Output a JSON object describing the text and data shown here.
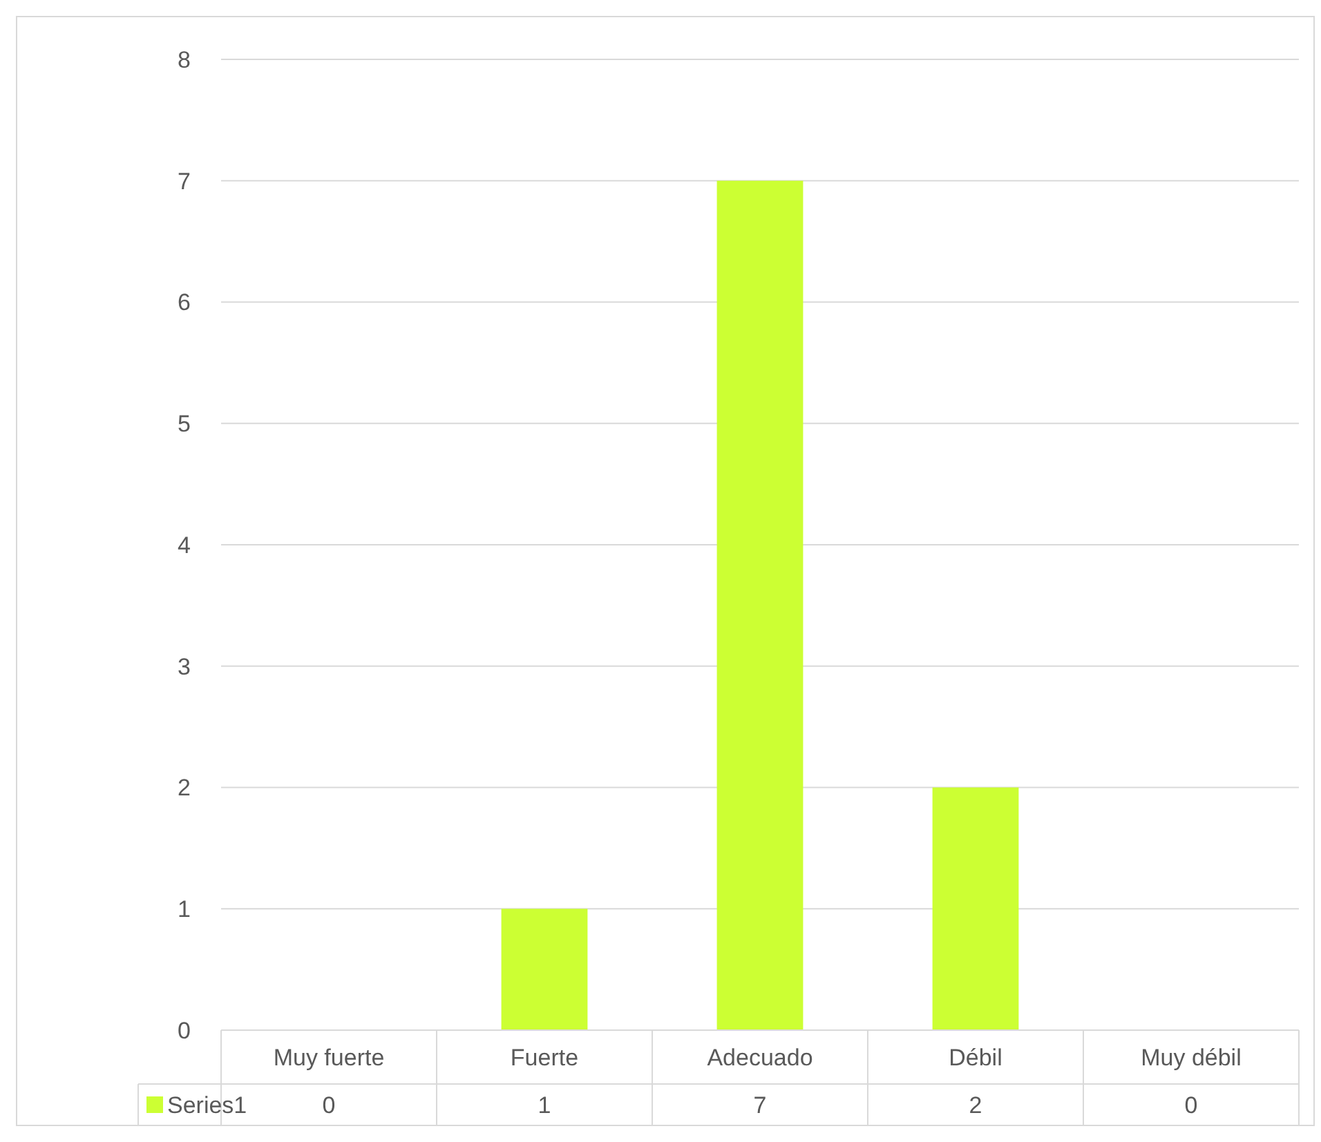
{
  "chart_data": {
    "type": "bar",
    "categories": [
      "Muy fuerte",
      "Fuerte",
      "Adecuado",
      "Débil",
      "Muy débil"
    ],
    "series": [
      {
        "name": "Series1",
        "color": "#ccff33",
        "values": [
          0,
          1,
          7,
          2,
          0
        ]
      }
    ],
    "ylim": [
      0,
      8
    ],
    "yticks": [
      0,
      1,
      2,
      3,
      4,
      5,
      6,
      7,
      8
    ],
    "grid": "y",
    "data_labels": true
  }
}
